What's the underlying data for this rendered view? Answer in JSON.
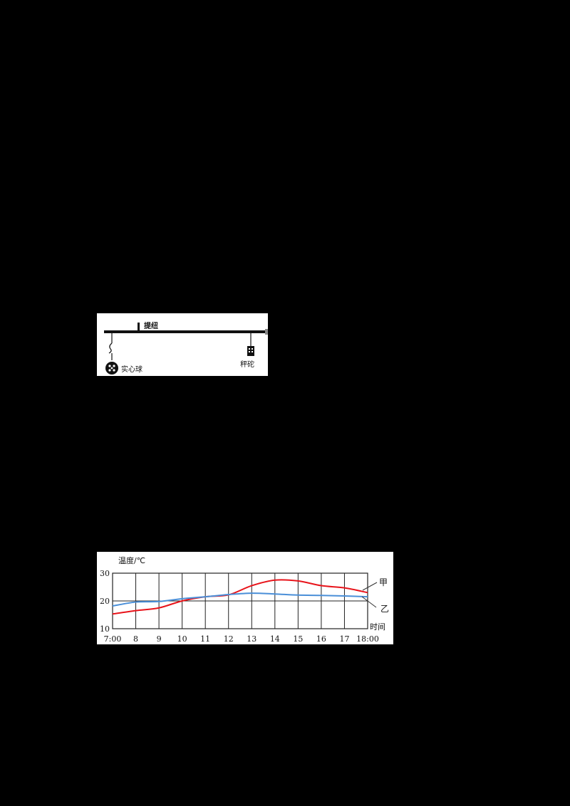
{
  "figure1": {
    "type": "diagram",
    "labels": {
      "pivot": "提纽",
      "ball": "实心球",
      "weight": "秤砣"
    }
  },
  "figure2": {
    "y_axis_label": "温度/℃",
    "x_axis_label": "时间",
    "series_labels": {
      "jia": "甲",
      "yi": "乙"
    }
  },
  "chart_data": {
    "type": "line",
    "title": "",
    "xlabel": "时间",
    "ylabel": "温度/℃",
    "x": [
      "7:00",
      "8",
      "9",
      "10",
      "11",
      "12",
      "13",
      "14",
      "15",
      "16",
      "17",
      "18:00"
    ],
    "yticks": [
      10,
      20,
      30
    ],
    "ylim": [
      10,
      30
    ],
    "grid": true,
    "legend": "inline-right",
    "series": [
      {
        "name": "甲",
        "color": "#e8141b",
        "values": [
          15.3,
          16.5,
          17.5,
          20.0,
          21.5,
          22.2,
          25.5,
          27.5,
          27.2,
          25.5,
          24.7,
          23.0
        ]
      },
      {
        "name": "乙",
        "color": "#4a8fd8",
        "values": [
          18.2,
          19.6,
          19.8,
          20.8,
          21.5,
          22.3,
          22.8,
          22.5,
          22.1,
          22.0,
          21.8,
          21.5
        ]
      }
    ]
  }
}
